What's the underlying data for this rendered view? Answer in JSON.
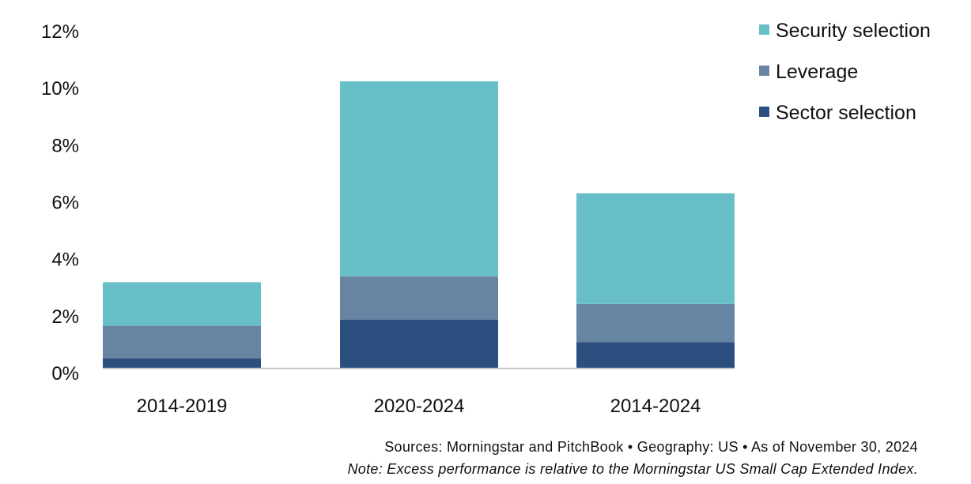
{
  "chart_data": {
    "type": "bar",
    "stacked": true,
    "categories": [
      "2014-2019",
      "2020-2024",
      "2014-2024"
    ],
    "series": [
      {
        "name": "Sector selection",
        "color": "#2b4f7e",
        "values": [
          0.34,
          1.69,
          0.91
        ]
      },
      {
        "name": "Leverage",
        "color": "#6884a3",
        "values": [
          1.14,
          1.52,
          1.34
        ]
      },
      {
        "name": "Security selection",
        "color": "#69bfc8",
        "values": [
          1.53,
          6.85,
          3.88
        ]
      }
    ],
    "ylim": [
      0,
      12
    ],
    "yticks": [
      "0%",
      "2%",
      "4%",
      "6%",
      "8%",
      "10%",
      "12%"
    ],
    "grid": false,
    "legend": "top-right",
    "legend_order": [
      "Security selection",
      "Leverage",
      "Sector selection"
    ]
  },
  "footer": {
    "sources": "Sources: Morningstar and PitchBook  •  Geography: US  •  As of November 30, 2024",
    "note": "Note: Excess performance is relative to the Morningstar US Small Cap Extended Index."
  }
}
